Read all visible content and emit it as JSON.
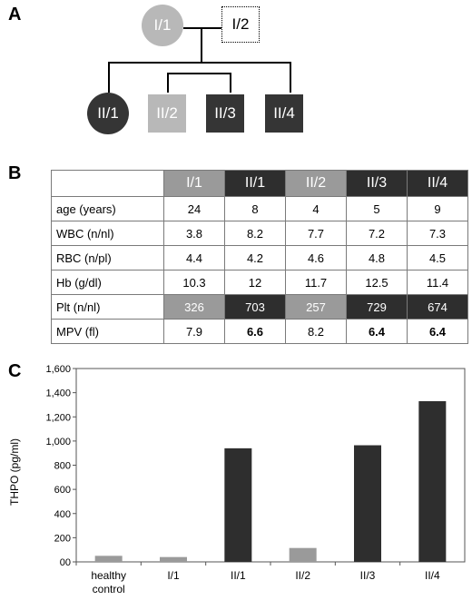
{
  "panels": {
    "a": "A",
    "b": "B",
    "c": "C"
  },
  "pedigree": {
    "gen1": [
      {
        "id": "I/1",
        "shape": "circle",
        "shade": "light"
      },
      {
        "id": "I/2",
        "shape": "square",
        "shade": "dotted"
      }
    ],
    "gen2": [
      {
        "id": "II/1",
        "shape": "circle",
        "shade": "dark"
      },
      {
        "id": "II/2",
        "shape": "square",
        "shade": "light"
      },
      {
        "id": "II/3",
        "shape": "square",
        "shade": "dark"
      },
      {
        "id": "II/4",
        "shape": "square",
        "shade": "dark"
      }
    ]
  },
  "table": {
    "columns": [
      "I/1",
      "II/1",
      "II/2",
      "II/3",
      "II/4"
    ],
    "rows": [
      {
        "label": "age (years)",
        "values": [
          "24",
          "8",
          "4",
          "5",
          "9"
        ]
      },
      {
        "label": "WBC (n/nl)",
        "values": [
          "3.8",
          "8.2",
          "7.7",
          "7.2",
          "7.3"
        ]
      },
      {
        "label": "RBC (n/pl)",
        "values": [
          "4.4",
          "4.2",
          "4.6",
          "4.8",
          "4.5"
        ]
      },
      {
        "label": "Hb (g/dl)",
        "values": [
          "10.3",
          "12",
          "11.7",
          "12.5",
          "11.4"
        ]
      },
      {
        "label": "Plt (n/nl)",
        "values": [
          "326",
          "703",
          "257",
          "729",
          "674"
        ]
      },
      {
        "label": "MPV (fl)",
        "values": [
          "7.9",
          "6.6",
          "8.2",
          "6.4",
          "6.4"
        ]
      }
    ]
  },
  "chart_data": {
    "type": "bar",
    "categories": [
      "healthy control",
      "I/1",
      "II/1",
      "II/2",
      "II/3",
      "II/4"
    ],
    "category_lines": [
      [
        "healthy",
        "control"
      ],
      [
        "I/1"
      ],
      [
        "II/1"
      ],
      [
        "II/2"
      ],
      [
        "II/3"
      ],
      [
        "II/4"
      ]
    ],
    "values": [
      50,
      40,
      940,
      115,
      965,
      1330
    ],
    "bar_colors": [
      "#9a9a9a",
      "#9a9a9a",
      "#2e2e2e",
      "#9a9a9a",
      "#2e2e2e",
      "#2e2e2e"
    ],
    "ylabel": "THPO (pg/ml)",
    "ylim": [
      0,
      1600
    ],
    "yticks": [
      0,
      200,
      400,
      600,
      800,
      1000,
      1200,
      1400,
      1600
    ],
    "ytick_labels": [
      "00",
      "200",
      "400",
      "600",
      "800",
      "1,000",
      "1,200",
      "1,400",
      "1,600"
    ],
    "grid": false
  }
}
